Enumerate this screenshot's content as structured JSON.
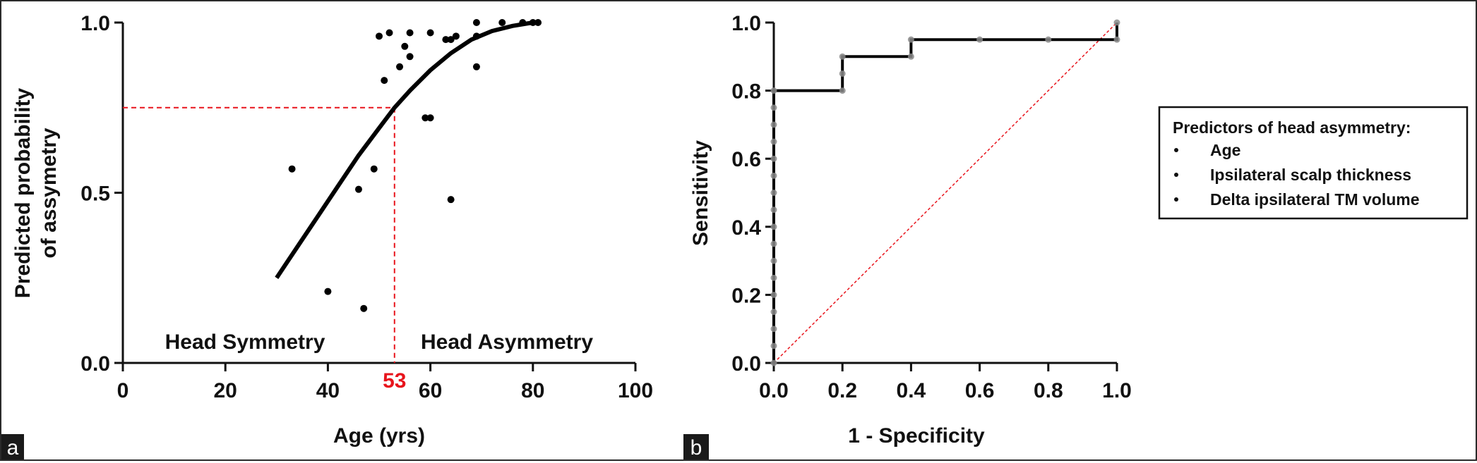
{
  "panel_labels": {
    "a": "a",
    "b": "b"
  },
  "chart_data": [
    {
      "type": "scatter",
      "panel": "a",
      "xlabel": "Age (yrs)",
      "ylabel_lines": [
        "Predicted probability",
        "of assymetry"
      ],
      "xlim": [
        0,
        100
      ],
      "ylim": [
        0,
        1
      ],
      "xticks": [
        0,
        20,
        40,
        60,
        80,
        100
      ],
      "xtick_labels": [
        "0",
        "20",
        "40",
        "60",
        "80",
        "100"
      ],
      "yticks": [
        0,
        0.5,
        1
      ],
      "ytick_labels": [
        "0.0",
        "0.5",
        "1.0"
      ],
      "grid": false,
      "points": [
        [
          33,
          0.57
        ],
        [
          40,
          0.21
        ],
        [
          46,
          0.51
        ],
        [
          47,
          0.16
        ],
        [
          49,
          0.57
        ],
        [
          50,
          0.96
        ],
        [
          51,
          0.83
        ],
        [
          52,
          0.97
        ],
        [
          54,
          0.87
        ],
        [
          55,
          0.93
        ],
        [
          56,
          0.9
        ],
        [
          56,
          0.97
        ],
        [
          59,
          0.72
        ],
        [
          60,
          0.97
        ],
        [
          60,
          0.72
        ],
        [
          63,
          0.95
        ],
        [
          64,
          0.95
        ],
        [
          64,
          0.48
        ],
        [
          65,
          0.96
        ],
        [
          69,
          1.0
        ],
        [
          69,
          0.96
        ],
        [
          69,
          0.87
        ],
        [
          74,
          1.0
        ],
        [
          78,
          1.0
        ],
        [
          80,
          1.0
        ],
        [
          81,
          1.0
        ]
      ],
      "fitted_curve": {
        "x": [
          30,
          34,
          38,
          42,
          46,
          50,
          53,
          56,
          60,
          64,
          68,
          72,
          76,
          80
        ],
        "y": [
          0.25,
          0.34,
          0.43,
          0.52,
          0.61,
          0.69,
          0.75,
          0.8,
          0.86,
          0.91,
          0.95,
          0.975,
          0.99,
          1.0
        ]
      },
      "cutoff": {
        "x": 53,
        "y": 0.75,
        "label": "53",
        "color": "#e8141c"
      },
      "regions": {
        "left": "Head Symmetry",
        "right": "Head Asymmetry"
      }
    },
    {
      "type": "line",
      "panel": "b",
      "xlabel": "1 - Specificity",
      "ylabel": "Sensitivity",
      "xlim": [
        0,
        1
      ],
      "ylim": [
        0,
        1
      ],
      "xticks": [
        0,
        0.2,
        0.4,
        0.6,
        0.8,
        1.0
      ],
      "xtick_labels": [
        "0.0",
        "0.2",
        "0.4",
        "0.6",
        "0.8",
        "1.0"
      ],
      "yticks": [
        0,
        0.2,
        0.4,
        0.6,
        0.8,
        1.0
      ],
      "ytick_labels": [
        "0.0",
        "0.2",
        "0.4",
        "0.6",
        "0.8",
        "1.0"
      ],
      "grid": false,
      "roc_curve": {
        "x": [
          0,
          0,
          0.2,
          0.2,
          0.4,
          0.4,
          1.0,
          1.0
        ],
        "y": [
          0,
          0.8,
          0.8,
          0.9,
          0.9,
          0.95,
          0.95,
          1.0
        ]
      },
      "roc_points": {
        "x": [
          0,
          0,
          0,
          0,
          0,
          0,
          0,
          0,
          0,
          0,
          0,
          0,
          0,
          0,
          0,
          0,
          0,
          0.2,
          0.2,
          0.2,
          0.4,
          0.4,
          0.6,
          0.8,
          1.0,
          1.0
        ],
        "y": [
          0,
          0.05,
          0.1,
          0.15,
          0.2,
          0.25,
          0.3,
          0.35,
          0.4,
          0.45,
          0.5,
          0.55,
          0.6,
          0.65,
          0.7,
          0.75,
          0.8,
          0.8,
          0.85,
          0.9,
          0.9,
          0.95,
          0.95,
          0.95,
          0.95,
          1.0
        ]
      },
      "reference_line": {
        "x": [
          0,
          1
        ],
        "y": [
          0,
          1
        ],
        "color": "#e8141c"
      },
      "legend": {
        "placement": "right",
        "title": "Predictors of head asymmetry:",
        "items": [
          "Age",
          "Ipsilateral scalp thickness",
          "Delta ipsilateral TM volume"
        ]
      }
    }
  ]
}
